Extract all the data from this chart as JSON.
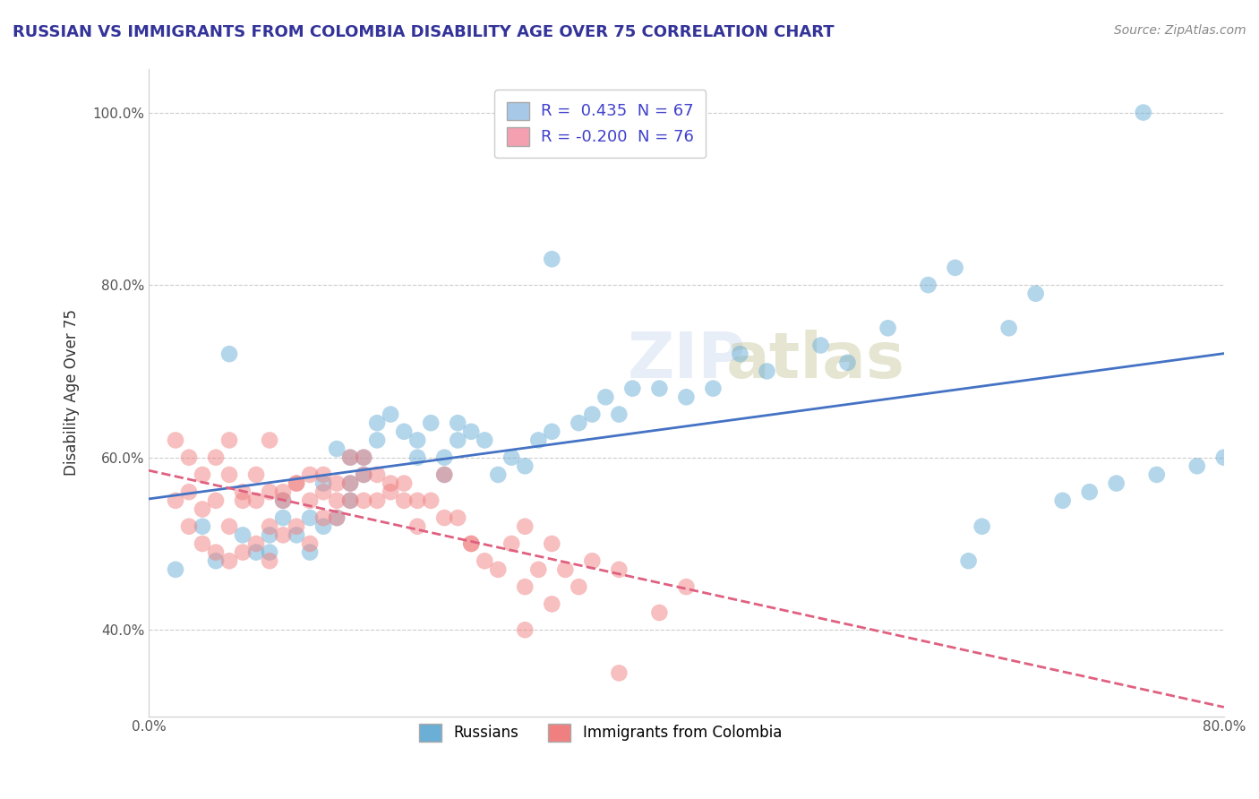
{
  "title": "RUSSIAN VS IMMIGRANTS FROM COLOMBIA DISABILITY AGE OVER 75 CORRELATION CHART",
  "source": "Source: ZipAtlas.com",
  "xlabel": "",
  "ylabel": "Disability Age Over 75",
  "x_tick_labels": [
    "0.0%",
    "80.0%"
  ],
  "y_tick_labels": [
    "40.0%",
    "60.0%",
    "80.0%",
    "100.0%"
  ],
  "xlim": [
    0.0,
    0.8
  ],
  "ylim": [
    0.3,
    1.05
  ],
  "legend_entries": [
    {
      "label": "R =  0.435  N = 67",
      "color": "#a8c8e8"
    },
    {
      "label": "R = -0.200  N = 76",
      "color": "#f4a0b0"
    }
  ],
  "series": [
    {
      "name": "Russians",
      "R": 0.435,
      "N": 67,
      "color": "#6baed6",
      "alpha": 0.5,
      "points_x": [
        0.3,
        0.04,
        0.06,
        0.07,
        0.08,
        0.09,
        0.1,
        0.1,
        0.11,
        0.12,
        0.12,
        0.13,
        0.13,
        0.14,
        0.14,
        0.15,
        0.15,
        0.15,
        0.16,
        0.16,
        0.17,
        0.17,
        0.18,
        0.19,
        0.2,
        0.2,
        0.21,
        0.22,
        0.22,
        0.23,
        0.23,
        0.24,
        0.25,
        0.26,
        0.27,
        0.28,
        0.29,
        0.3,
        0.32,
        0.33,
        0.34,
        0.35,
        0.36,
        0.38,
        0.4,
        0.42,
        0.44,
        0.46,
        0.5,
        0.52,
        0.55,
        0.58,
        0.6,
        0.61,
        0.62,
        0.64,
        0.66,
        0.68,
        0.7,
        0.72,
        0.75,
        0.78,
        0.8,
        0.02,
        0.05,
        0.09,
        0.74
      ],
      "points_y": [
        0.83,
        0.52,
        0.72,
        0.51,
        0.49,
        0.51,
        0.53,
        0.55,
        0.51,
        0.49,
        0.53,
        0.52,
        0.57,
        0.53,
        0.61,
        0.55,
        0.57,
        0.6,
        0.58,
        0.6,
        0.62,
        0.64,
        0.65,
        0.63,
        0.6,
        0.62,
        0.64,
        0.58,
        0.6,
        0.62,
        0.64,
        0.63,
        0.62,
        0.58,
        0.6,
        0.59,
        0.62,
        0.63,
        0.64,
        0.65,
        0.67,
        0.65,
        0.68,
        0.68,
        0.67,
        0.68,
        0.72,
        0.7,
        0.73,
        0.71,
        0.75,
        0.8,
        0.82,
        0.48,
        0.52,
        0.75,
        0.79,
        0.55,
        0.56,
        0.57,
        0.58,
        0.59,
        0.6,
        0.47,
        0.48,
        0.49,
        1.0
      ]
    },
    {
      "name": "Immigrants from Colombia",
      "R": -0.2,
      "N": 76,
      "color": "#f08080",
      "alpha": 0.5,
      "points_x": [
        0.02,
        0.03,
        0.03,
        0.04,
        0.04,
        0.05,
        0.05,
        0.06,
        0.06,
        0.07,
        0.07,
        0.08,
        0.08,
        0.09,
        0.09,
        0.09,
        0.1,
        0.1,
        0.11,
        0.11,
        0.12,
        0.12,
        0.13,
        0.13,
        0.14,
        0.14,
        0.15,
        0.15,
        0.16,
        0.16,
        0.17,
        0.18,
        0.19,
        0.2,
        0.21,
        0.22,
        0.23,
        0.24,
        0.25,
        0.26,
        0.27,
        0.28,
        0.28,
        0.29,
        0.3,
        0.31,
        0.32,
        0.33,
        0.35,
        0.38,
        0.4,
        0.3,
        0.02,
        0.03,
        0.04,
        0.05,
        0.06,
        0.06,
        0.07,
        0.08,
        0.09,
        0.1,
        0.11,
        0.12,
        0.13,
        0.14,
        0.15,
        0.16,
        0.17,
        0.18,
        0.19,
        0.2,
        0.22,
        0.24,
        0.28,
        0.35
      ],
      "points_y": [
        0.55,
        0.52,
        0.56,
        0.5,
        0.54,
        0.49,
        0.55,
        0.48,
        0.52,
        0.49,
        0.55,
        0.5,
        0.55,
        0.48,
        0.52,
        0.56,
        0.51,
        0.55,
        0.52,
        0.57,
        0.5,
        0.55,
        0.53,
        0.58,
        0.53,
        0.57,
        0.55,
        0.6,
        0.55,
        0.6,
        0.58,
        0.57,
        0.55,
        0.52,
        0.55,
        0.58,
        0.53,
        0.5,
        0.48,
        0.47,
        0.5,
        0.45,
        0.52,
        0.47,
        0.5,
        0.47,
        0.45,
        0.48,
        0.47,
        0.42,
        0.45,
        0.43,
        0.62,
        0.6,
        0.58,
        0.6,
        0.58,
        0.62,
        0.56,
        0.58,
        0.62,
        0.56,
        0.57,
        0.58,
        0.56,
        0.55,
        0.57,
        0.58,
        0.55,
        0.56,
        0.57,
        0.55,
        0.53,
        0.5,
        0.4,
        0.35
      ]
    }
  ],
  "watermark": "ZIPatlas",
  "trend_lines": [
    {
      "color": "#4472c4",
      "style": "solid",
      "series": 0
    },
    {
      "color": "#e06080",
      "style": "dashed",
      "series": 1
    }
  ]
}
